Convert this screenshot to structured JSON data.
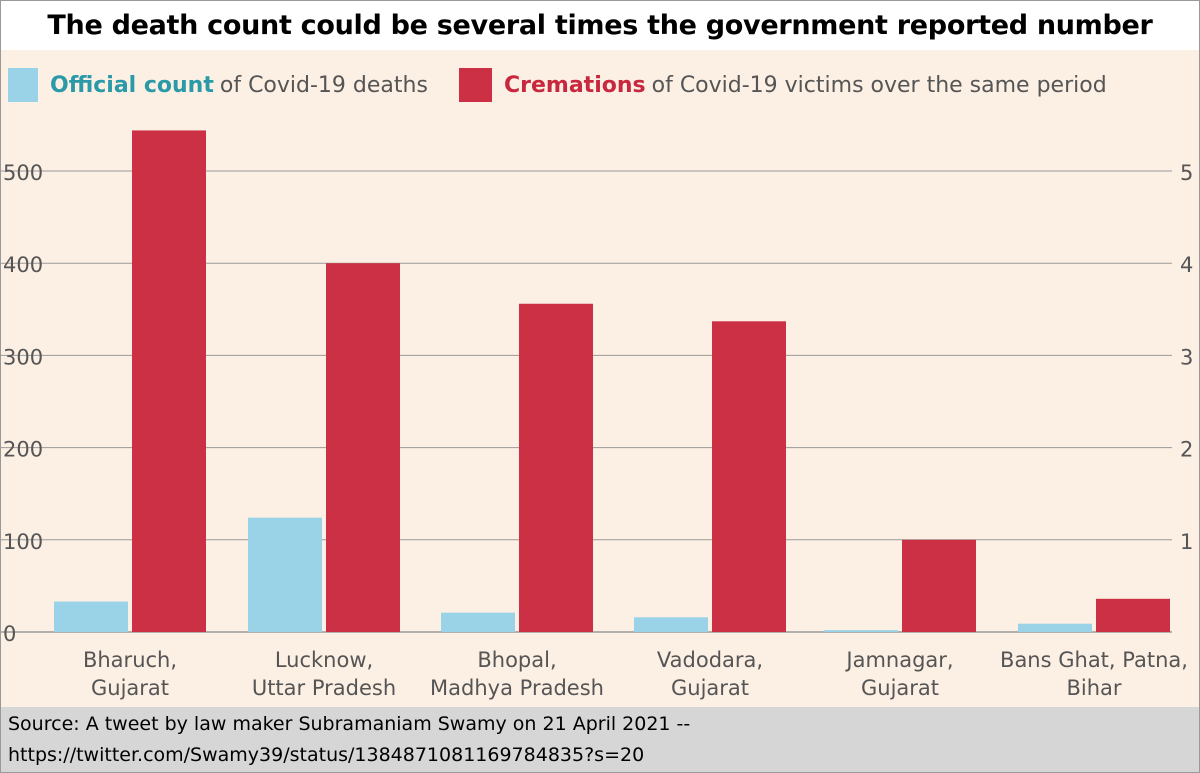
{
  "title": "The death count could be several times the government reported number",
  "colors": {
    "official": "#9ad3e8",
    "cremations": "#cc3044",
    "official_text": "#2a9aa8",
    "cremations_text": "#c8283e",
    "background": "#fcefe4",
    "grid": "#9a9a9a",
    "axis_text": "#555555"
  },
  "legend": {
    "official": {
      "name": "Official count",
      "suffix": "of Covid-19 deaths"
    },
    "cremations": {
      "name": "Cremations",
      "suffix": "of Covid-19 victims over the same period"
    }
  },
  "chart_data": {
    "type": "bar",
    "title": "The death count could be several times the government reported number",
    "xlabel": "",
    "ylabel": "",
    "ylim": [
      0,
      550
    ],
    "yticks": [
      0,
      100,
      200,
      300,
      400,
      500
    ],
    "yticks_right": [
      "5",
      "4",
      "3",
      "2",
      "1"
    ],
    "grid": true,
    "legend_position": "top-left",
    "categories": [
      [
        "Bharuch,",
        "Gujarat"
      ],
      [
        "Lucknow,",
        "Uttar Pradesh"
      ],
      [
        "Bhopal,",
        "Madhya Pradesh"
      ],
      [
        "Vadodara,",
        "Gujarat"
      ],
      [
        "Jamnagar,",
        "Gujarat"
      ],
      [
        "Bans Ghat, Patna,",
        "Bihar"
      ]
    ],
    "series": [
      {
        "name": "Official count",
        "color": "#9ad3e8",
        "values": [
          33,
          124,
          21,
          16,
          2,
          9
        ]
      },
      {
        "name": "Cremations",
        "color": "#cc3044",
        "values": [
          544,
          400,
          356,
          337,
          100,
          36
        ]
      }
    ]
  },
  "source": {
    "line1": "Source: A tweet by law maker Subramaniam Swamy on 21 April 2021 --",
    "line2": "https://twitter.com/Swamy39/status/1384871081169784835?s=20"
  }
}
